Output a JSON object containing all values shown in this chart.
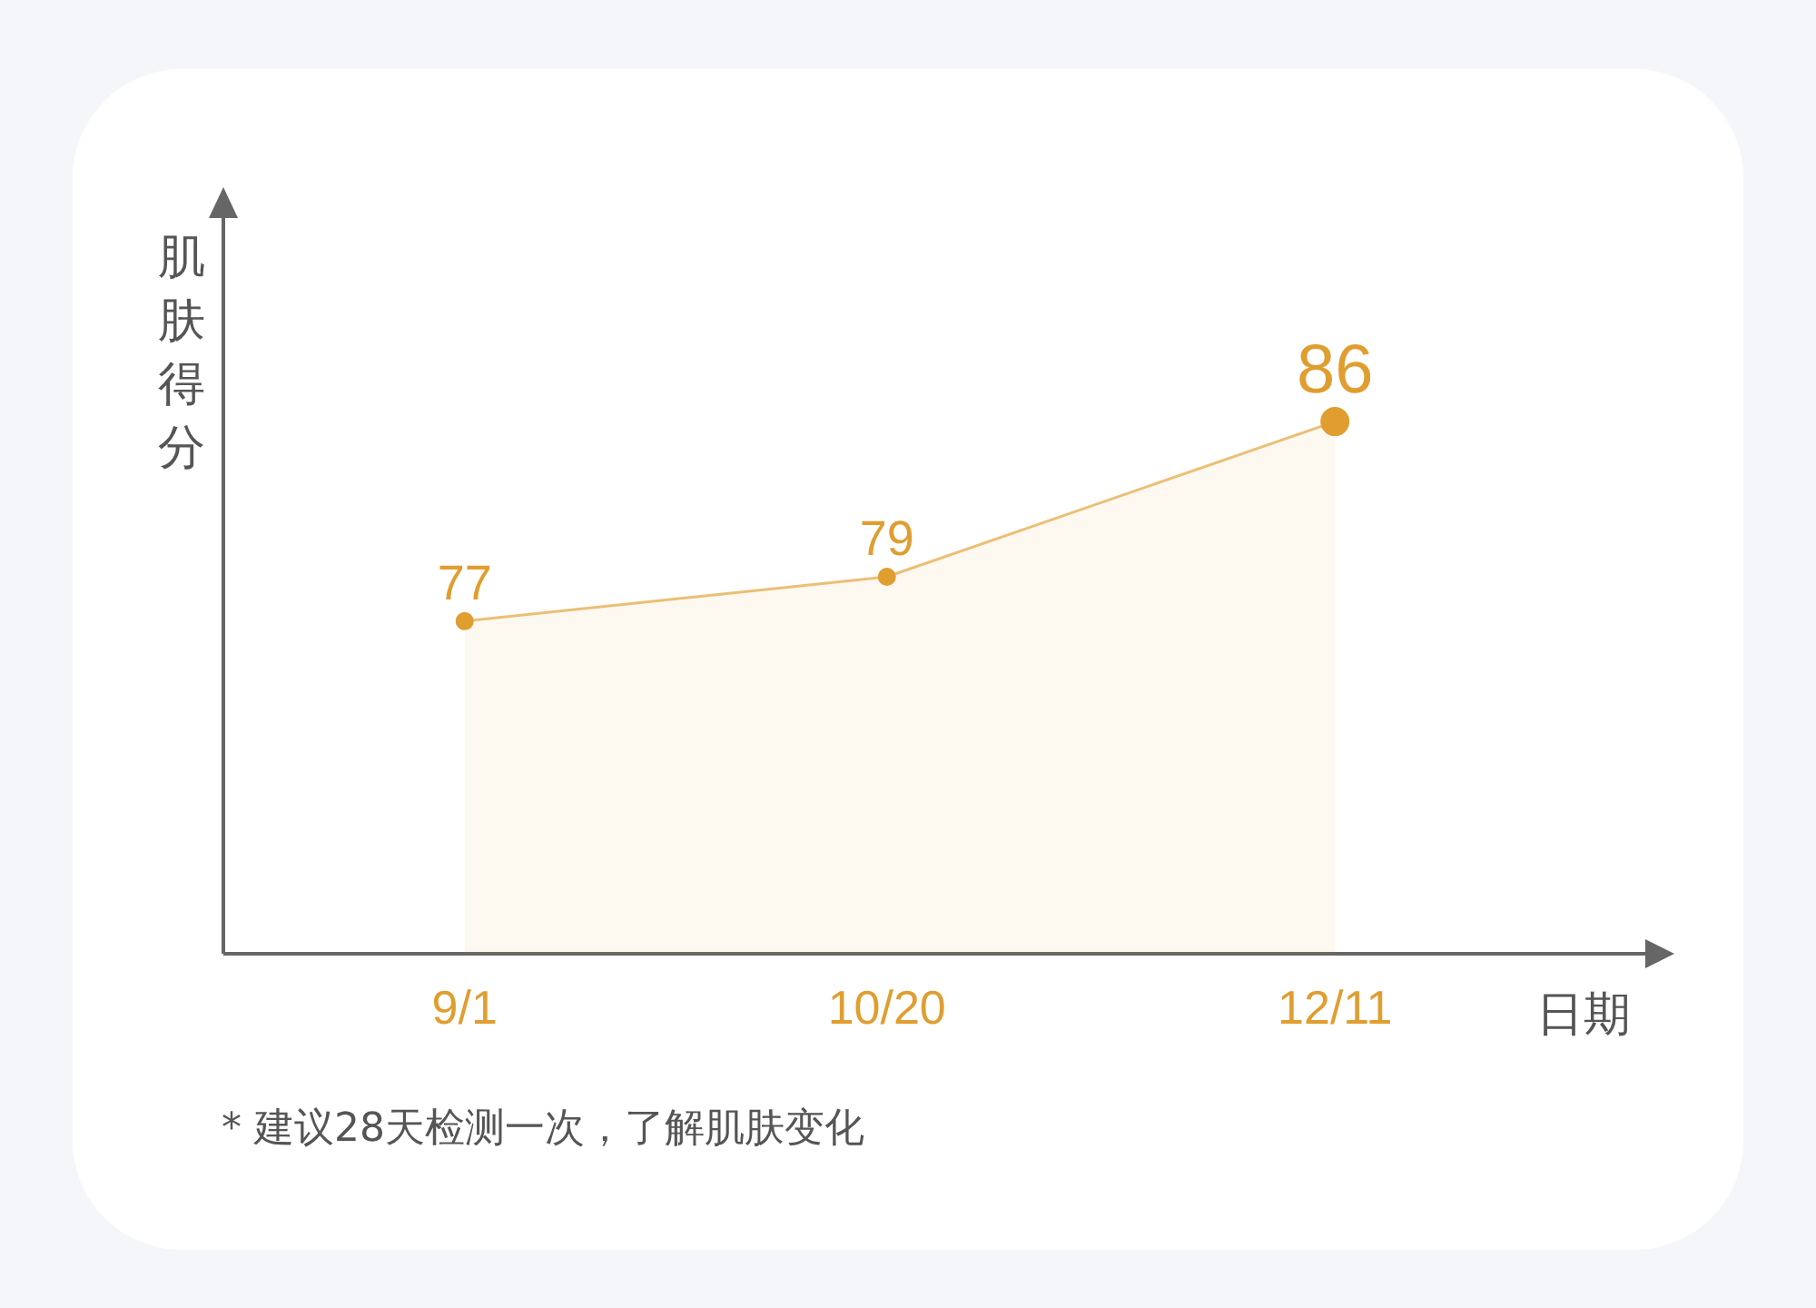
{
  "chart_data": {
    "type": "area",
    "ylabel": "肌肤得分",
    "xlabel": "日期",
    "x": [
      "--09-01",
      "--10-20",
      "--12-11"
    ],
    "xlim": [
      "--08-04",
      "--12-31"
    ],
    "xticks": [
      {
        "value": "--09-01",
        "label": "9/1"
      },
      {
        "value": "--10-20",
        "label": "10/20"
      },
      {
        "value": "--12-11",
        "label": "12/11"
      }
    ],
    "ylim": [
      62,
      96
    ],
    "tick_labels": "x",
    "series": [
      {
        "color": "#e09e30",
        "values": [
          77,
          79,
          86
        ]
      }
    ],
    "data_labels": true,
    "marker": "circle",
    "annotations": [
      "* 建议28天检测一次，了解肌肤变化"
    ]
  }
}
